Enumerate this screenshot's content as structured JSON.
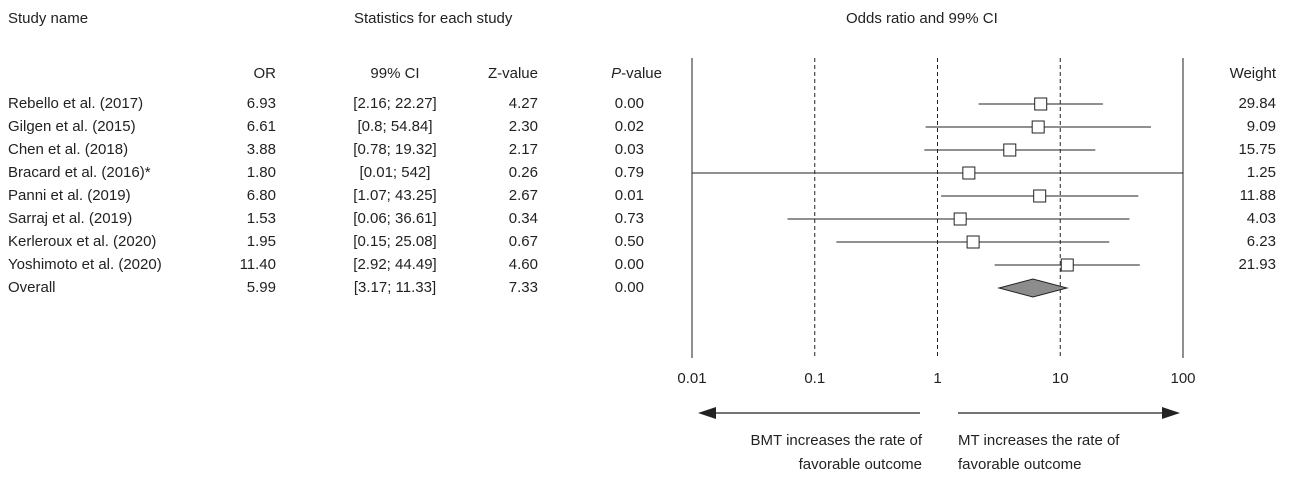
{
  "headers": {
    "study_name": "Study name",
    "stats_group": "Statistics for each study",
    "plot_group": "Odds ratio and 99% CI",
    "or": "OR",
    "ci": "99% CI",
    "z": "Z-value",
    "p_italic": "P",
    "p_rest": "-value",
    "weight": "Weight"
  },
  "rows": [
    {
      "study": "Rebello et al. (2017)",
      "or": "6.93",
      "ci": "[2.16; 22.27]",
      "z": "4.27",
      "p": "0.00",
      "weight": "29.84"
    },
    {
      "study": "Gilgen et al. (2015)",
      "or": "6.61",
      "ci": "[0.8; 54.84]",
      "z": "2.30",
      "p": "0.02",
      "weight": "9.09"
    },
    {
      "study": "Chen et al. (2018)",
      "or": "3.88",
      "ci": "[0.78; 19.32]",
      "z": "2.17",
      "p": "0.03",
      "weight": "15.75"
    },
    {
      "study": "Bracard et al. (2016)*",
      "or": "1.80",
      "ci": "[0.01; 542]",
      "z": "0.26",
      "p": "0.79",
      "weight": "1.25"
    },
    {
      "study": "Panni et al. (2019)",
      "or": "6.80",
      "ci": "[1.07; 43.25]",
      "z": "2.67",
      "p": "0.01",
      "weight": "11.88"
    },
    {
      "study": "Sarraj et al. (2019)",
      "or": "1.53",
      "ci": "[0.06; 36.61]",
      "z": "0.34",
      "p": "0.73",
      "weight": "4.03"
    },
    {
      "study": "Kerleroux et al. (2020)",
      "or": "1.95",
      "ci": "[0.15; 25.08]",
      "z": "0.67",
      "p": "0.50",
      "weight": "6.23"
    },
    {
      "study": "Yoshimoto et al. (2020)",
      "or": "11.40",
      "ci": "[2.92; 44.49]",
      "z": "4.60",
      "p": "0.00",
      "weight": "21.93"
    }
  ],
  "overall": {
    "study": "Overall",
    "or": "5.99",
    "ci": "[3.17; 11.33]",
    "z": "7.33",
    "p": "0.00"
  },
  "direction": {
    "left_line1": "BMT increases the rate of",
    "left_line2": "favorable outcome",
    "right_line1": "MT increases the rate of",
    "right_line2": "favorable outcome"
  },
  "chart_data": {
    "type": "forest",
    "xscale": "log",
    "xlim": [
      0.01,
      100
    ],
    "xticks": [
      0.01,
      0.1,
      1,
      10,
      100
    ],
    "xtick_labels": [
      "0.01",
      "0.1",
      "1",
      "10",
      "100"
    ],
    "reference_lines": [
      0.1,
      1,
      10
    ],
    "series": [
      {
        "or": 6.93,
        "lo": 2.16,
        "hi": 22.27
      },
      {
        "or": 6.61,
        "lo": 0.8,
        "hi": 54.84
      },
      {
        "or": 3.88,
        "lo": 0.78,
        "hi": 19.32
      },
      {
        "or": 1.8,
        "lo": 0.01,
        "hi": 100
      },
      {
        "or": 6.8,
        "lo": 1.07,
        "hi": 43.25
      },
      {
        "or": 1.53,
        "lo": 0.06,
        "hi": 36.61
      },
      {
        "or": 1.95,
        "lo": 0.15,
        "hi": 25.08
      },
      {
        "or": 11.4,
        "lo": 2.92,
        "hi": 44.49
      }
    ],
    "overall": {
      "or": 5.99,
      "lo": 3.17,
      "hi": 11.33
    },
    "colors": {
      "diamond": "#8c8c8c",
      "line": "#222222"
    }
  }
}
